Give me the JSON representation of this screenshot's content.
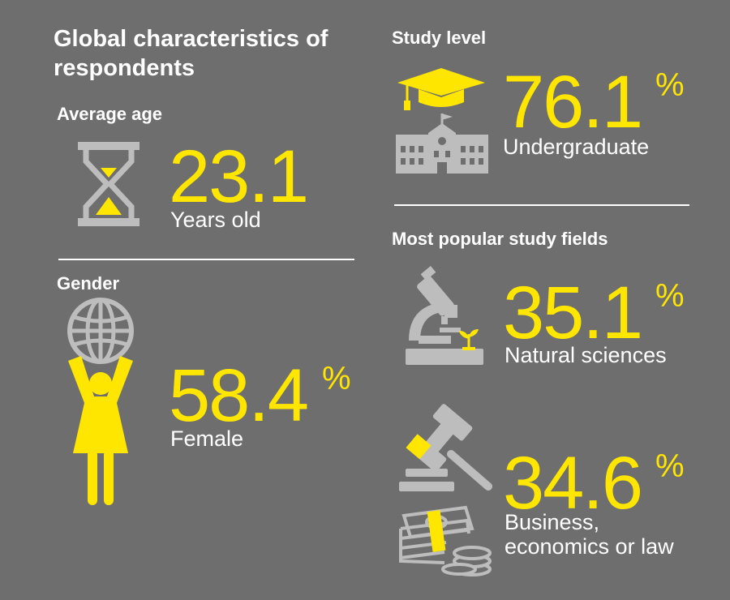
{
  "title": "Global characteristics of respondents",
  "average_age": {
    "heading": "Average age",
    "value": "23.1",
    "label": "Years old"
  },
  "gender": {
    "heading": "Gender",
    "value": "58.4",
    "unit": "%",
    "label": "Female"
  },
  "study_level": {
    "heading": "Study level",
    "value": "76.1",
    "unit": "%",
    "label": "Undergraduate"
  },
  "fields": {
    "heading": "Most popular study fields",
    "items": [
      {
        "value": "35.1",
        "unit": "%",
        "label": "Natural sciences"
      },
      {
        "value": "34.6",
        "unit": "%",
        "label_line1": "Business,",
        "label_line2": "economics or law"
      }
    ]
  },
  "colors": {
    "background": "#6f6e6e",
    "accent": "#ffe600",
    "icon_gray": "#bdbdbd",
    "text": "#ffffff"
  },
  "icons": [
    "hourglass-icon",
    "female-globe-icon",
    "graduation-cap-icon",
    "school-building-icon",
    "microscope-icon",
    "gavel-icon",
    "money-coins-icon"
  ]
}
